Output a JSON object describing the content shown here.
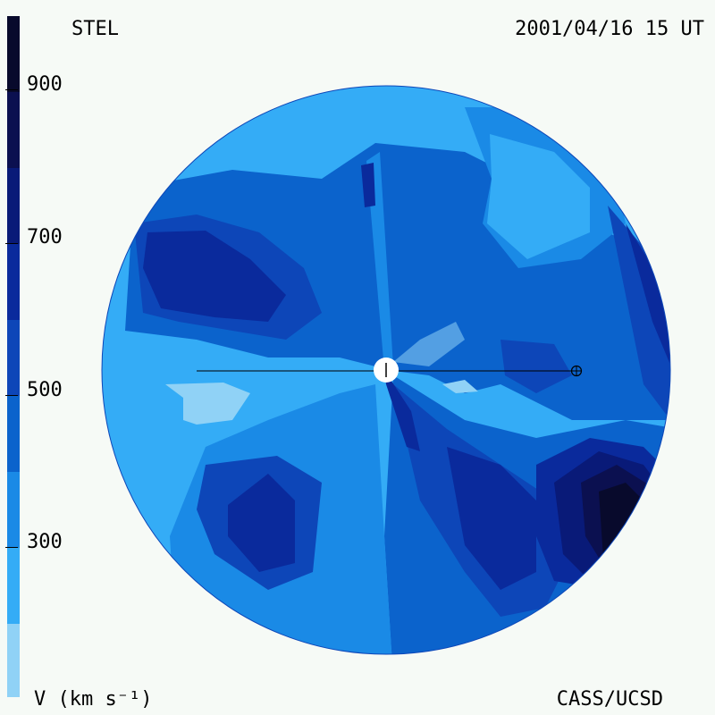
{
  "header": {
    "observatory": "STEL",
    "datetime": "2001/04/16 15 UT"
  },
  "footer": {
    "unit": "V (km s⁻¹)",
    "credit": "CASS/UCSD"
  },
  "colorbar": {
    "tick_labels": [
      "900",
      "700",
      "500",
      "300"
    ],
    "colors": [
      "#080a2c",
      "#0b1050",
      "#091a78",
      "#0a2a9c",
      "#0d46b8",
      "#0b63cc",
      "#1a8ae6",
      "#34acf6",
      "#90d2f6"
    ]
  },
  "map": {
    "background_color": "#34acf6",
    "sun_marker": "sun-disk",
    "earth_marker": "earth-symbol"
  }
}
